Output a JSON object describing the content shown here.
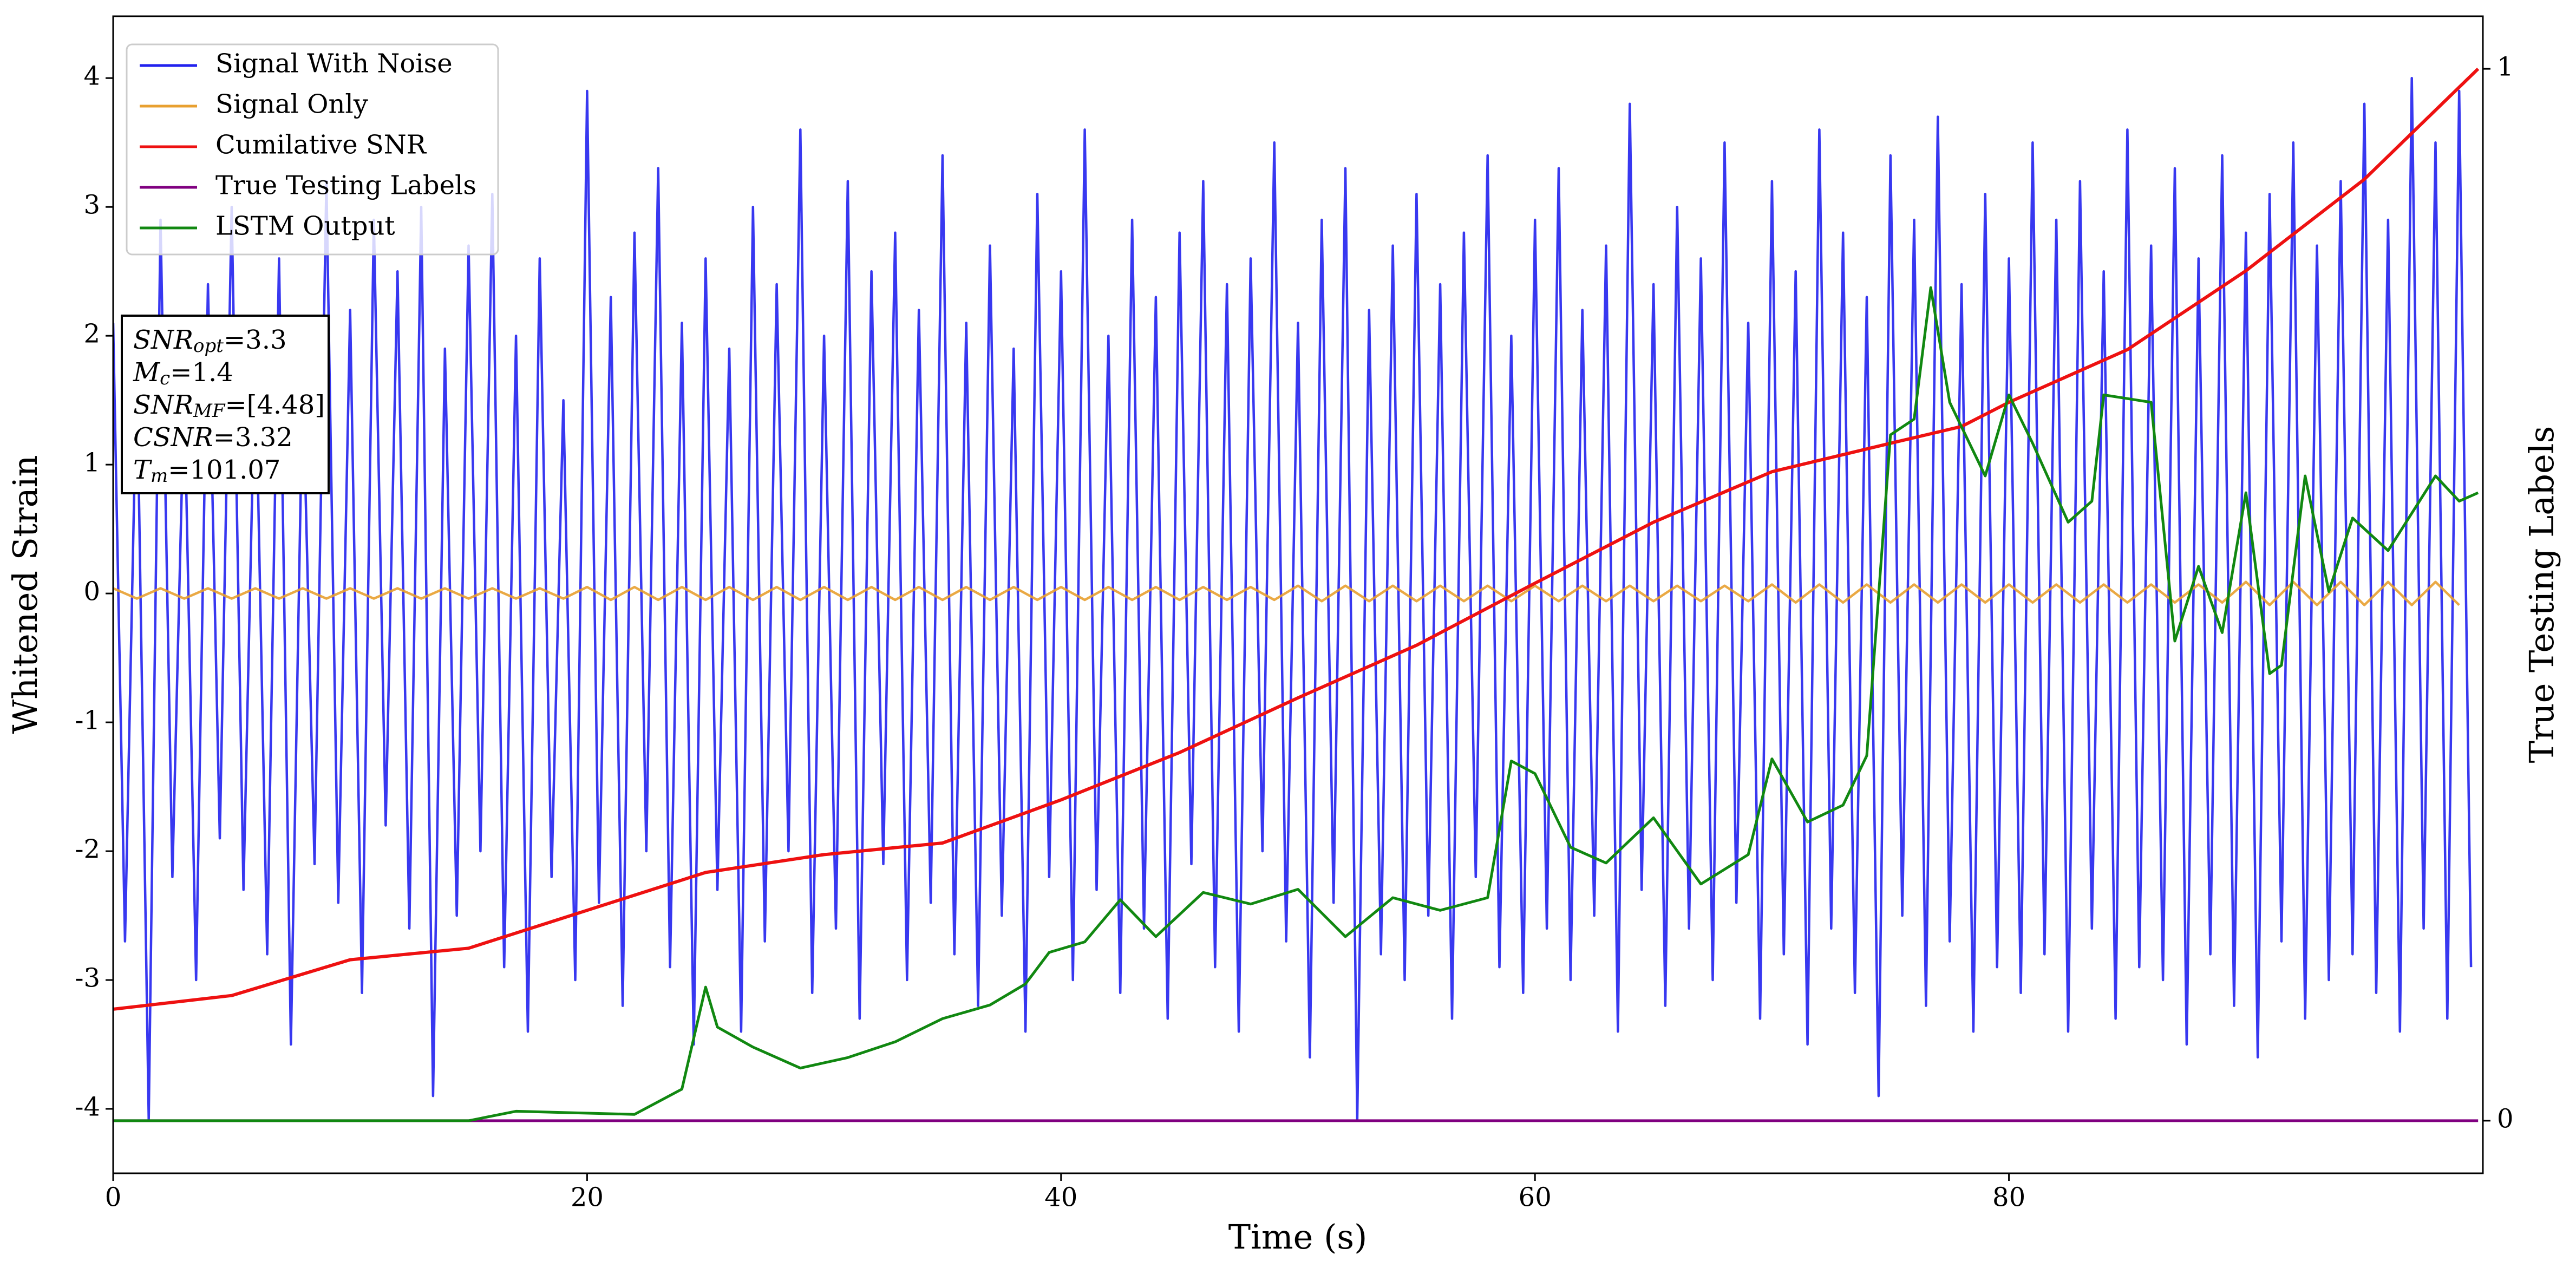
{
  "chart_data": {
    "type": "line",
    "xlabel": "Time (s)",
    "ylabel": "Whitened Strain",
    "y2label": "True Testing Labels",
    "xlim": [
      0,
      100
    ],
    "ylim": [
      -4.5,
      4.48
    ],
    "y2lim": [
      -0.05,
      1.05
    ],
    "xticks": [
      0,
      20,
      40,
      60,
      80
    ],
    "yticks": [
      -4,
      -3,
      -2,
      -1,
      0,
      1,
      2,
      3,
      4
    ],
    "y2ticks": [
      0,
      1
    ],
    "legend": "upper left",
    "annotation": [
      {
        "symbol": "SNR",
        "subscript": "opt",
        "text": "=3.3"
      },
      {
        "symbol": "M",
        "subscript": "c",
        "text": "=1.4"
      },
      {
        "symbol": "SNR",
        "subscript": "MF",
        "text": "=[4.48]"
      },
      {
        "symbol": "CSNR",
        "text": "=3.32"
      },
      {
        "symbol": "T",
        "subscript": "m",
        "text": "=101.07"
      }
    ],
    "series": [
      {
        "name": "Signal With Noise",
        "color": "#2222ee",
        "axis": "y",
        "x": [
          0,
          0.5,
          1,
          1.5,
          2,
          2.5,
          3,
          3.5,
          4,
          4.5,
          5,
          5.5,
          6,
          6.5,
          7,
          7.5,
          8,
          8.5,
          9,
          9.5,
          10,
          10.5,
          11,
          11.5,
          12,
          12.5,
          13,
          13.5,
          14,
          14.5,
          15,
          15.5,
          16,
          16.5,
          17,
          17.5,
          18,
          18.5,
          19,
          19.5,
          20,
          20.5,
          21,
          21.5,
          22,
          22.5,
          23,
          23.5,
          24,
          24.5,
          25,
          25.5,
          26,
          26.5,
          27,
          27.5,
          28,
          28.5,
          29,
          29.5,
          30,
          30.5,
          31,
          31.5,
          32,
          32.5,
          33,
          33.5,
          34,
          34.5,
          35,
          35.5,
          36,
          36.5,
          37,
          37.5,
          38,
          38.5,
          39,
          39.5,
          40,
          40.5,
          41,
          41.5,
          42,
          42.5,
          43,
          43.5,
          44,
          44.5,
          45,
          45.5,
          46,
          46.5,
          47,
          47.5,
          48,
          48.5,
          49,
          49.5,
          50,
          50.5,
          51,
          51.5,
          52,
          52.5,
          53,
          53.5,
          54,
          54.5,
          55,
          55.5,
          56,
          56.5,
          57,
          57.5,
          58,
          58.5,
          59,
          59.5,
          60,
          60.5,
          61,
          61.5,
          62,
          62.5,
          63,
          63.5,
          64,
          64.5,
          65,
          65.5,
          66,
          66.5,
          67,
          67.5,
          68,
          68.5,
          69,
          69.5,
          70,
          70.5,
          71,
          71.5,
          72,
          72.5,
          73,
          73.5,
          74,
          74.5,
          75,
          75.5,
          76,
          76.5,
          77,
          77.5,
          78,
          78.5,
          79,
          79.5,
          80,
          80.5,
          81,
          81.5,
          82,
          82.5,
          83,
          83.5,
          84,
          84.5,
          85,
          85.5,
          86,
          86.5,
          87,
          87.5,
          88,
          88.5,
          89,
          89.5,
          90,
          90.5,
          91,
          91.5,
          92,
          92.5,
          93,
          93.5,
          94,
          94.5,
          95,
          95.5,
          96,
          96.5,
          97,
          97.5,
          98,
          98.5,
          99,
          99.5
        ],
        "values": [
          2.1,
          -2.7,
          1.8,
          -4.08,
          2.9,
          -2.2,
          1.6,
          -3.0,
          2.4,
          -1.9,
          3.0,
          -2.3,
          1.9,
          -2.8,
          2.6,
          -3.5,
          1.7,
          -2.1,
          3.2,
          -2.4,
          2.2,
          -3.1,
          2.9,
          -1.8,
          2.5,
          -2.6,
          3.0,
          -3.9,
          1.9,
          -2.5,
          2.7,
          -2.0,
          3.1,
          -2.9,
          2.0,
          -3.4,
          2.6,
          -2.2,
          1.5,
          -3.0,
          3.9,
          -2.4,
          2.3,
          -3.2,
          2.8,
          -2.0,
          3.3,
          -2.9,
          2.1,
          -3.5,
          2.6,
          -2.3,
          1.9,
          -3.4,
          3.0,
          -2.7,
          2.4,
          -2.0,
          3.6,
          -3.1,
          2.0,
          -2.6,
          3.2,
          -3.3,
          2.5,
          -2.1,
          2.8,
          -3.0,
          2.2,
          -2.4,
          3.4,
          -2.8,
          2.1,
          -3.2,
          2.7,
          -2.5,
          1.9,
          -3.4,
          3.1,
          -2.2,
          2.5,
          -3.0,
          3.6,
          -2.3,
          2.0,
          -3.1,
          2.9,
          -2.6,
          2.3,
          -3.3,
          2.8,
          -2.1,
          3.2,
          -2.9,
          2.4,
          -3.4,
          2.6,
          -2.0,
          3.5,
          -2.7,
          2.1,
          -3.6,
          2.9,
          -2.4,
          3.3,
          -4.08,
          2.2,
          -2.8,
          2.7,
          -3.0,
          3.1,
          -2.5,
          2.4,
          -3.3,
          2.8,
          -2.2,
          3.4,
          -2.9,
          2.0,
          -3.1,
          2.9,
          -2.6,
          3.3,
          -3.0,
          2.2,
          -2.5,
          2.7,
          -3.4,
          3.8,
          -2.3,
          2.4,
          -3.2,
          3.0,
          -2.6,
          2.6,
          -3.0,
          3.5,
          -2.4,
          2.1,
          -3.3,
          3.2,
          -2.8,
          2.5,
          -3.5,
          3.6,
          -2.6,
          2.8,
          -3.1,
          2.3,
          -3.9,
          3.4,
          -2.5,
          2.9,
          -3.2,
          3.7,
          -2.7,
          2.4,
          -3.4,
          3.1,
          -2.9,
          2.6,
          -3.1,
          3.5,
          -2.8,
          2.9,
          -3.4,
          3.2,
          -2.6,
          2.5,
          -3.3,
          3.6,
          -2.9,
          2.7,
          -3.0,
          3.3,
          -3.5,
          2.6,
          -2.8,
          3.4,
          -3.2,
          2.8,
          -3.6,
          3.1,
          -2.7,
          3.5,
          -3.3,
          2.7,
          -3.0,
          3.2,
          -2.8,
          3.8,
          -3.1,
          2.9,
          -3.4,
          4.0,
          -2.6,
          3.5,
          -3.3,
          3.9,
          -2.9
        ]
      },
      {
        "name": "Signal Only",
        "color": "#e8a030",
        "axis": "y",
        "x": [
          0,
          1,
          2,
          3,
          4,
          5,
          6,
          7,
          8,
          9,
          10,
          11,
          12,
          13,
          14,
          15,
          16,
          17,
          18,
          19,
          20,
          21,
          22,
          23,
          24,
          25,
          26,
          27,
          28,
          29,
          30,
          31,
          32,
          33,
          34,
          35,
          36,
          37,
          38,
          39,
          40,
          41,
          42,
          43,
          44,
          45,
          46,
          47,
          48,
          49,
          50,
          51,
          52,
          53,
          54,
          55,
          56,
          57,
          58,
          59,
          60,
          61,
          62,
          63,
          64,
          65,
          66,
          67,
          68,
          69,
          70,
          71,
          72,
          73,
          74,
          75,
          76,
          77,
          78,
          79,
          80,
          81,
          82,
          83,
          84,
          85,
          86,
          87,
          88,
          89,
          90,
          91,
          92,
          93,
          94,
          95,
          96,
          97,
          98,
          99
        ],
        "values": [
          0.04,
          -0.04,
          0.04,
          -0.04,
          0.04,
          -0.04,
          0.04,
          -0.04,
          0.04,
          -0.04,
          0.04,
          -0.04,
          0.04,
          -0.04,
          0.04,
          -0.04,
          0.04,
          -0.04,
          0.04,
          -0.04,
          0.05,
          -0.05,
          0.05,
          -0.05,
          0.05,
          -0.05,
          0.05,
          -0.05,
          0.05,
          -0.05,
          0.05,
          -0.05,
          0.05,
          -0.05,
          0.05,
          -0.05,
          0.05,
          -0.05,
          0.05,
          -0.05,
          0.05,
          -0.05,
          0.05,
          -0.05,
          0.05,
          -0.05,
          0.05,
          -0.05,
          0.05,
          -0.05,
          0.06,
          -0.06,
          0.06,
          -0.06,
          0.06,
          -0.06,
          0.06,
          -0.06,
          0.06,
          -0.06,
          0.06,
          -0.06,
          0.06,
          -0.06,
          0.06,
          -0.06,
          0.06,
          -0.06,
          0.06,
          -0.06,
          0.07,
          -0.07,
          0.07,
          -0.07,
          0.07,
          -0.07,
          0.07,
          -0.07,
          0.07,
          -0.07,
          0.07,
          -0.07,
          0.07,
          -0.07,
          0.07,
          -0.07,
          0.07,
          -0.07,
          0.07,
          -0.07,
          0.09,
          -0.09,
          0.09,
          -0.09,
          0.09,
          -0.09,
          0.09,
          -0.09,
          0.09,
          -0.09
        ]
      },
      {
        "name": "Cumilative SNR",
        "color": "#ee1111",
        "axis": "y2",
        "x": [
          0,
          5,
          10,
          15,
          20,
          25,
          30,
          35,
          40,
          45,
          50,
          55,
          60,
          65,
          70,
          75,
          78,
          80,
          85,
          90,
          95,
          99.8
        ],
        "values": [
          0.106,
          0.119,
          0.153,
          0.164,
          0.2,
          0.236,
          0.253,
          0.264,
          0.305,
          0.35,
          0.402,
          0.452,
          0.511,
          0.569,
          0.617,
          0.644,
          0.66,
          0.683,
          0.733,
          0.808,
          0.895,
          1.0
        ]
      },
      {
        "name": "True Testing Labels",
        "color": "#800080",
        "axis": "y2",
        "x": [
          0,
          99.8
        ],
        "values": [
          0,
          0
        ]
      },
      {
        "name": "LSTM Output",
        "color": "#118811",
        "axis": "y2",
        "x": [
          0,
          15,
          17,
          22,
          24,
          25,
          25.5,
          27,
          29,
          31,
          33,
          35,
          37,
          38.5,
          39.5,
          41,
          42.5,
          44,
          46,
          48,
          50,
          52,
          54,
          56,
          58,
          59,
          60,
          61.5,
          63,
          65,
          67,
          69,
          70,
          71.5,
          73,
          74,
          75,
          76,
          76.7,
          77.5,
          79,
          80,
          81,
          82.5,
          83.5,
          84,
          86,
          87,
          88,
          89,
          90,
          91,
          91.5,
          92.5,
          93.5,
          94.5,
          96,
          98,
          99,
          99.8
        ],
        "values": [
          0,
          0,
          0.009,
          0.006,
          0.03,
          0.127,
          0.089,
          0.07,
          0.05,
          0.06,
          0.075,
          0.097,
          0.11,
          0.13,
          0.16,
          0.17,
          0.21,
          0.175,
          0.217,
          0.206,
          0.22,
          0.175,
          0.212,
          0.2,
          0.212,
          0.342,
          0.33,
          0.26,
          0.245,
          0.288,
          0.225,
          0.253,
          0.344,
          0.284,
          0.3,
          0.347,
          0.652,
          0.667,
          0.792,
          0.683,
          0.613,
          0.69,
          0.644,
          0.569,
          0.589,
          0.69,
          0.683,
          0.456,
          0.527,
          0.464,
          0.597,
          0.425,
          0.433,
          0.613,
          0.503,
          0.573,
          0.542,
          0.613,
          0.589,
          0.597
        ]
      }
    ]
  }
}
